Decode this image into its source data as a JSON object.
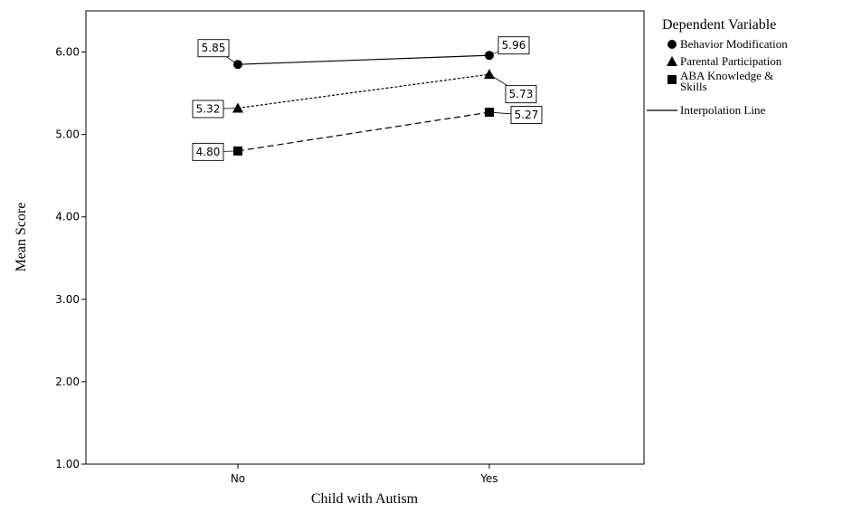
{
  "chart_data": {
    "type": "line",
    "xlabel": "Child with Autism",
    "ylabel": "Mean Score",
    "categories": [
      "No",
      "Yes"
    ],
    "ylim": [
      1.0,
      6.5
    ],
    "yticks": [
      1.0,
      2.0,
      3.0,
      4.0,
      5.0,
      6.0
    ],
    "ytick_labels": [
      "1.00",
      "2.00",
      "3.00",
      "4.00",
      "5.00",
      "6.00"
    ],
    "grid": false,
    "legend": {
      "title": "Dependent Variable",
      "placement": "right",
      "line_entry": "Interpolation Line"
    },
    "series": [
      {
        "name": "Behavior Modification",
        "marker": "circle",
        "dash": "solid",
        "values": [
          5.85,
          5.96
        ],
        "labels": [
          "5.85",
          "5.96"
        ]
      },
      {
        "name": "Parental Participation",
        "marker": "triangle",
        "dash": "dotted",
        "values": [
          5.32,
          5.73
        ],
        "labels": [
          "5.32",
          "5.73"
        ]
      },
      {
        "name": "ABA Knowledge & Skills",
        "marker": "square",
        "dash": "dashed",
        "values": [
          4.8,
          5.27
        ],
        "labels": [
          "4.80",
          "5.27"
        ]
      }
    ]
  }
}
